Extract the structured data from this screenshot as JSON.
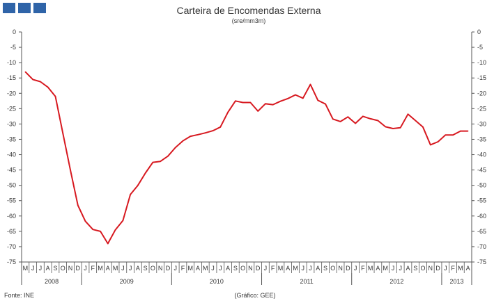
{
  "colors": {
    "line": "#d71920",
    "logo": "#2f64a8",
    "axis": "#555555",
    "text": "#333333"
  },
  "chart_data": {
    "type": "line",
    "title": "Carteira de Encomendas  Externa",
    "subtitle": "(sre/mm3m)",
    "ylim": [
      -75,
      0
    ],
    "yticks": [
      0,
      -5,
      -10,
      -15,
      -20,
      -25,
      -30,
      -35,
      -40,
      -45,
      -50,
      -55,
      -60,
      -65,
      -70,
      -75
    ],
    "ytick_labels": [
      "0",
      "-5",
      "-10",
      "-15",
      "-20",
      "-25",
      "-30",
      "-35",
      "-40",
      "-45",
      "-50",
      "-55",
      "-60",
      "-65",
      "-70",
      "-75"
    ],
    "grid": false,
    "legend": "none",
    "months": [
      "M",
      "J",
      "J",
      "A",
      "S",
      "O",
      "N",
      "D",
      "J",
      "F",
      "M",
      "A",
      "M",
      "J",
      "J",
      "A",
      "S",
      "O",
      "N",
      "D",
      "J",
      "F",
      "M",
      "A",
      "M",
      "J",
      "J",
      "A",
      "S",
      "O",
      "N",
      "D",
      "J",
      "F",
      "M",
      "A",
      "M",
      "J",
      "J",
      "A",
      "S",
      "O",
      "N",
      "D",
      "J",
      "F",
      "M",
      "A",
      "M",
      "J",
      "J",
      "A",
      "S",
      "O",
      "N",
      "D",
      "J",
      "F",
      "M",
      "A"
    ],
    "years": [
      {
        "label": "2008",
        "start": 0,
        "count": 8
      },
      {
        "label": "2009",
        "start": 8,
        "count": 12
      },
      {
        "label": "2010",
        "start": 20,
        "count": 12
      },
      {
        "label": "2011",
        "start": 32,
        "count": 12
      },
      {
        "label": "2012",
        "start": 44,
        "count": 12
      },
      {
        "label": "2013",
        "start": 56,
        "count": 4
      }
    ],
    "series": [
      {
        "values": [
          -13,
          -15.5,
          -16.2,
          -18,
          -21,
          -33,
          -45,
          -56.5,
          -61.7,
          -64.4,
          -65,
          -69,
          -64.5,
          -61.5,
          -53,
          -50,
          -46,
          -42.5,
          -42.2,
          -40.5,
          -37.7,
          -35.5,
          -34,
          -33.5,
          -32.9,
          -32.2,
          -31,
          -26.2,
          -22.5,
          -23,
          -23,
          -25.8,
          -23.4,
          -23.7,
          -22.6,
          -21.7,
          -20.5,
          -21.6,
          -17.1,
          -22.3,
          -23.5,
          -28.4,
          -29.2,
          -27.7,
          -29.8,
          -27.5,
          -28.3,
          -28.9,
          -30.9,
          -31.5,
          -31.2,
          -26.8,
          -28.9,
          -31,
          -36.8,
          -35.8,
          -33.6,
          -33.6,
          -32.3,
          -32.3
        ]
      }
    ]
  },
  "footer": {
    "source": "Fonte: INE",
    "credit": "(Gráfico: GEE)"
  }
}
